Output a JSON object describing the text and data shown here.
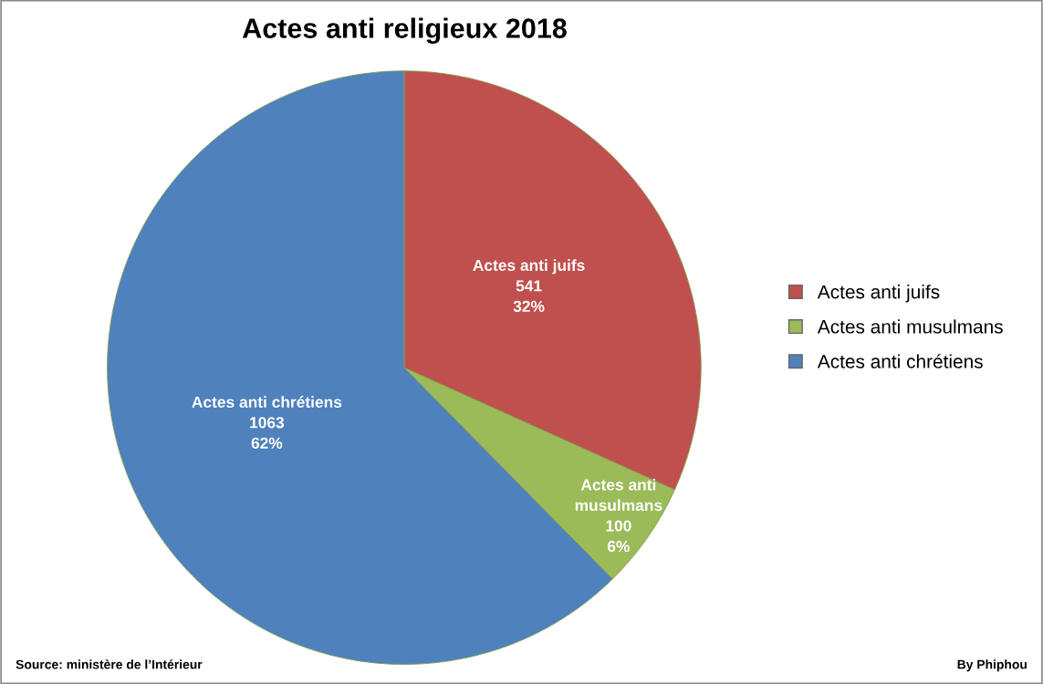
{
  "chart_data": {
    "type": "pie",
    "title": "Actes anti religieux 2018",
    "categories": [
      "Actes anti juifs",
      "Actes anti musulmans",
      "Actes anti chrétiens"
    ],
    "values": [
      541,
      100,
      1063
    ],
    "colors": [
      "#c0504d",
      "#9bbb59",
      "#4f81bd"
    ],
    "value_labels": [
      "Actes anti juifs\n541\n32%",
      "Actes anti\nmusulmans\n100\n6%",
      "Actes anti chrétiens\n1063\n62%"
    ],
    "legend": "right",
    "annotations": [
      "Source: ministère de l’Intérieur",
      "By Phiphou"
    ]
  }
}
